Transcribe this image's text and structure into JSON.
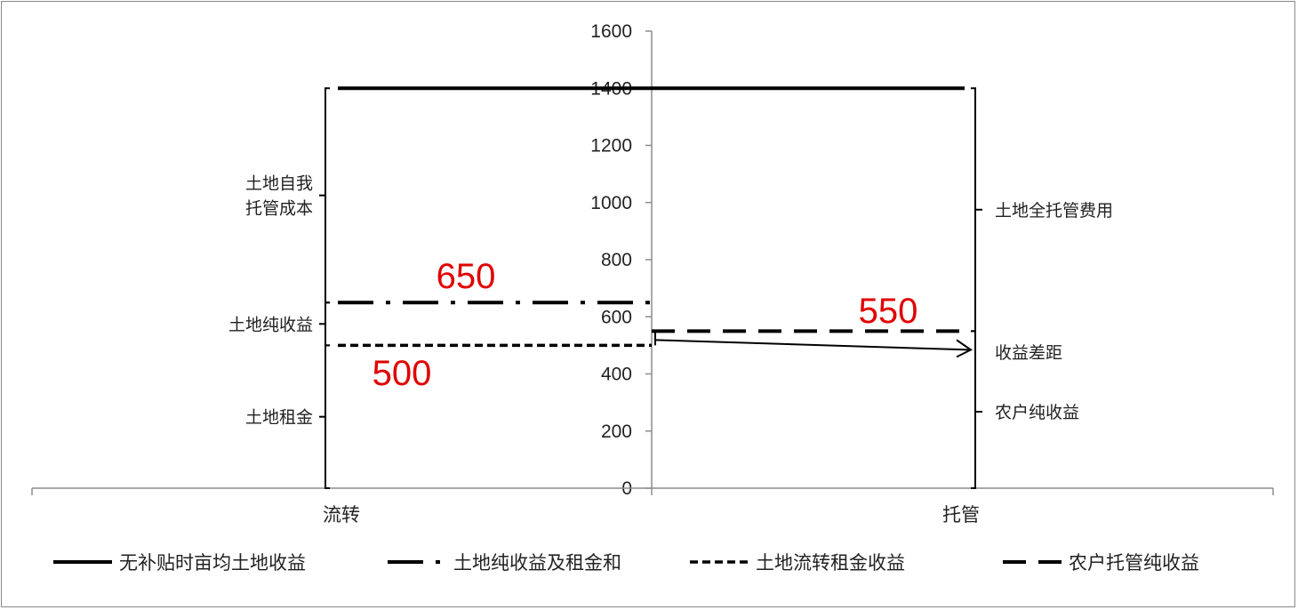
{
  "chart_data": {
    "type": "line",
    "categories": [
      "流转",
      "托管"
    ],
    "ylim": [
      0,
      1600
    ],
    "yticks": [
      0,
      200,
      400,
      600,
      800,
      1000,
      1200,
      1400,
      1600
    ],
    "grid": false,
    "legend_position": "bottom",
    "series": [
      {
        "name": "无补贴时亩均土地收益",
        "style": "solid",
        "color": "#000000",
        "segments": [
          {
            "from": "流转",
            "to": "托管",
            "value": 1400
          }
        ]
      },
      {
        "name": "土地纯收益及租金和",
        "style": "dash-dot",
        "color": "#000000",
        "segments": [
          {
            "from": "流转",
            "to": "middle",
            "value": 650
          }
        ]
      },
      {
        "name": "土地流转租金收益",
        "style": "short-dash",
        "color": "#000000",
        "segments": [
          {
            "from": "流转",
            "to": "middle",
            "value": 500
          }
        ]
      },
      {
        "name": "农户托管纯收益",
        "style": "long-dash",
        "color": "#000000",
        "segments": [
          {
            "from": "middle",
            "to": "托管",
            "value": 550
          }
        ]
      }
    ],
    "annotations": {
      "value_labels": [
        {
          "text": "650",
          "value": 650,
          "color": "#e00000"
        },
        {
          "text": "500",
          "value": 500,
          "color": "#e00000"
        },
        {
          "text": "550",
          "value": 550,
          "color": "#e00000"
        }
      ],
      "left_braces": [
        {
          "label": "土地自我托管成本",
          "lines": [
            "土地自我",
            "托管成本"
          ],
          "from": 650,
          "to": 1400
        },
        {
          "label": "土地纯收益",
          "lines": [
            "土地纯收益"
          ],
          "from": 500,
          "to": 650
        },
        {
          "label": "土地租金",
          "lines": [
            "土地租金"
          ],
          "from": 0,
          "to": 500
        }
      ],
      "right_braces": [
        {
          "label": "土地全托管费用",
          "lines": [
            "土地全托管费用"
          ],
          "from": 550,
          "to": 1400
        },
        {
          "label": "收益差距",
          "lines": [
            "收益差距"
          ],
          "from": 500,
          "to": 550
        },
        {
          "label": "农户纯收益",
          "lines": [
            "农户纯收益"
          ],
          "from": 0,
          "to": 550
        }
      ],
      "arrow": {
        "from_value": 500,
        "to_value": 500,
        "direction": "right"
      }
    }
  }
}
